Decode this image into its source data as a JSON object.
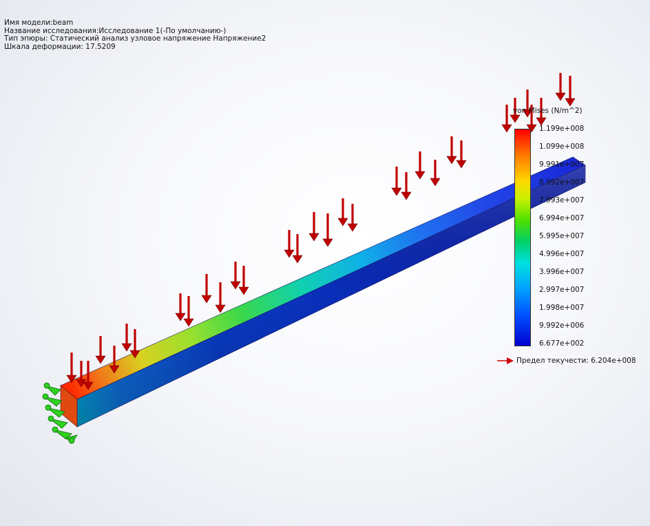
{
  "header": {
    "model_name": "Имя модели:beam",
    "study_name": "Название исследования:Исследование 1(-По умолчанию-)",
    "plot_type": "Тип эпюры: Статический анализ узловое напряжение Напряжение2",
    "deformation_scale": "Шкала деформации: 17.5209"
  },
  "legend": {
    "title": "von Mises (N/m^2)",
    "ticks": [
      "1.199e+008",
      "1.099e+008",
      "9.991e+007",
      "8.992e+007",
      "7.993e+007",
      "6.994e+007",
      "5.995e+007",
      "4.996e+007",
      "3.996e+007",
      "2.997e+007",
      "1.998e+007",
      "9.992e+006",
      "6.677e+002"
    ],
    "yield_label": "Предел текучести: 6.204e+008"
  },
  "colors": {
    "load_arrow": "#c00000",
    "fixture": "#30d020",
    "yield_arrow": "#d00000"
  },
  "icons": {
    "load": "down-arrow-icon",
    "fixture": "fixed-support-icon"
  }
}
